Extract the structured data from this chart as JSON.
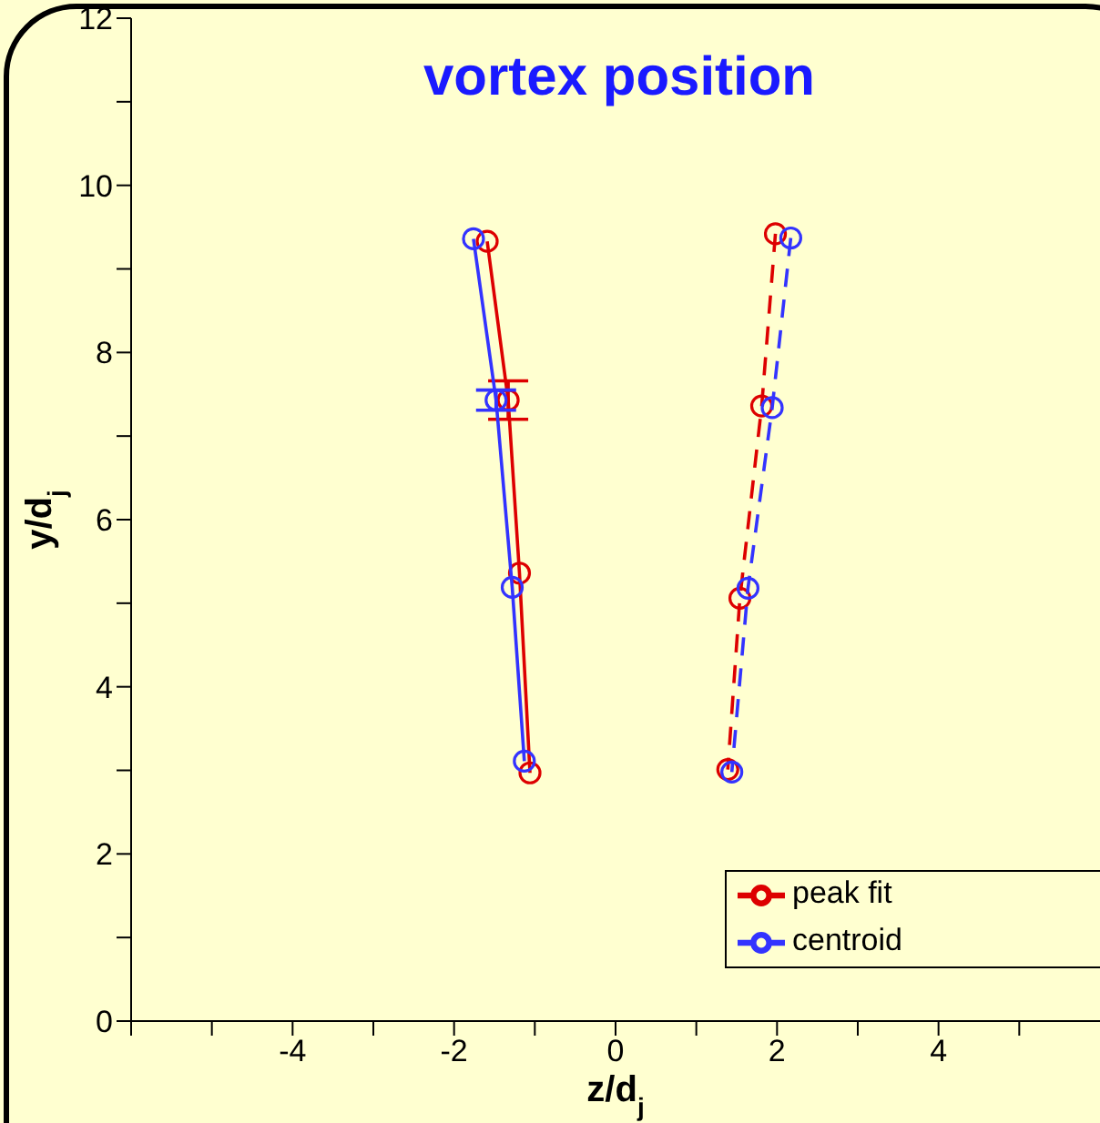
{
  "chart_data": {
    "type": "line",
    "title": "vortex position",
    "xlabel": "z/d$_{j}$",
    "ylabel": "y/d$_{j}$",
    "xlim": [
      -6,
      6
    ],
    "xticks": [
      {
        "value": -6,
        "label": null
      },
      {
        "value": -5,
        "label": null
      },
      -4,
      {
        "value": -3,
        "label": null
      },
      -2,
      {
        "value": -1,
        "label": null
      },
      0,
      {
        "value": 1,
        "label": null
      },
      2,
      {
        "value": 3,
        "label": null
      },
      4,
      {
        "value": 5,
        "label": null
      }
    ],
    "ylim": [
      0,
      12
    ],
    "yticks": [
      0,
      {
        "value": 1,
        "label": null
      },
      2,
      {
        "value": 3,
        "label": null
      },
      4,
      {
        "value": 5,
        "label": null
      },
      6,
      {
        "value": 7,
        "label": null
      },
      8,
      {
        "value": 9,
        "label": null
      },
      10,
      {
        "value": 11,
        "label": null
      },
      12
    ],
    "marker": "circle",
    "legend": "bottom right",
    "series": [
      {
        "name": "peak fit",
        "line_style": "solid",
        "color": "#dd0000",
        "x": [
          -1.59,
          -1.33,
          -1.19,
          -1.06
        ],
        "values": [
          9.33,
          7.43,
          5.36,
          2.97
        ],
        "errors": [
          null,
          0.23,
          null,
          null
        ]
      },
      {
        "name": "centroid",
        "line_style": "solid",
        "color": "#3333ff",
        "x": [
          -1.76,
          -1.48,
          -1.28,
          -1.13
        ],
        "values": [
          9.36,
          7.43,
          5.19,
          3.11
        ],
        "errors": [
          null,
          0.12,
          null,
          null
        ]
      },
      {
        "line_style": "dashed",
        "color": "#dd0000",
        "x": [
          1.98,
          1.81,
          1.54,
          1.39
        ],
        "values": [
          9.42,
          7.36,
          5.06,
          3.01
        ]
      },
      {
        "line_style": "dashed",
        "color": "#3333ff",
        "x": [
          2.17,
          1.94,
          1.64,
          1.44
        ],
        "values": [
          9.37,
          7.34,
          5.18,
          2.98
        ]
      }
    ]
  }
}
